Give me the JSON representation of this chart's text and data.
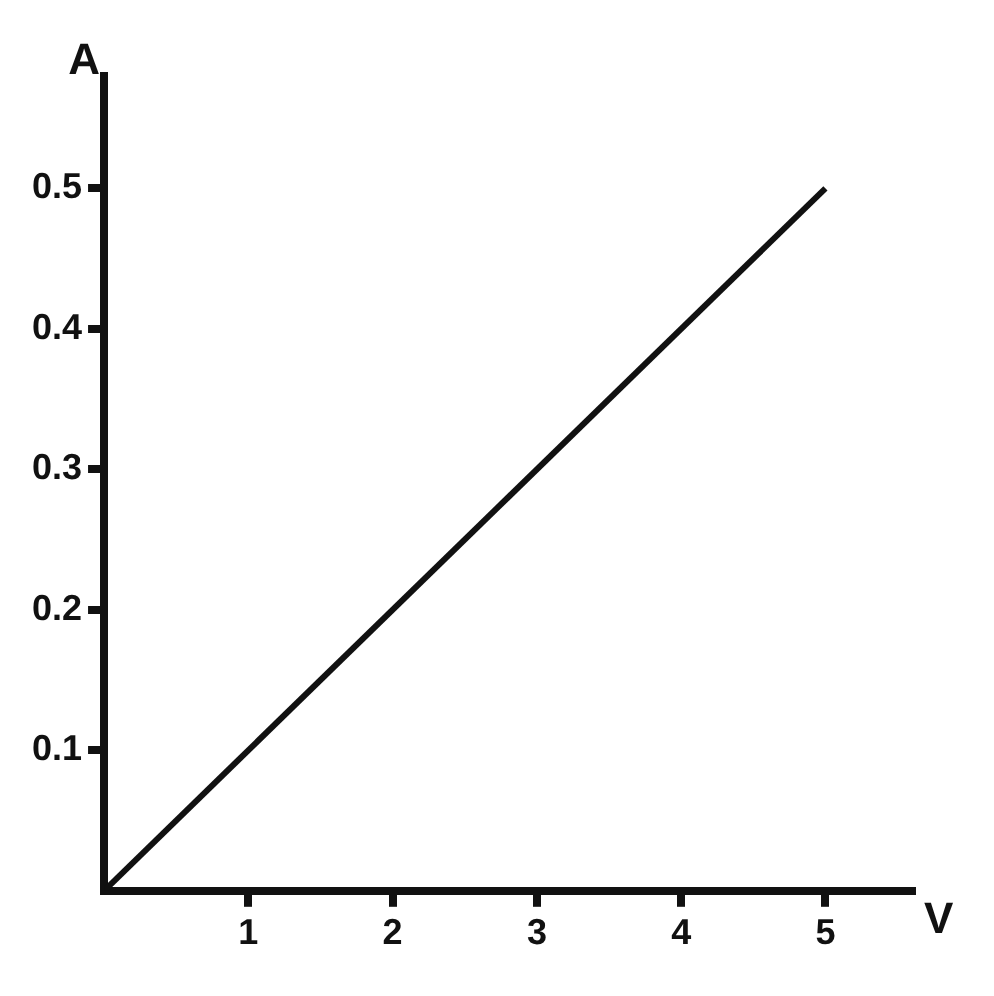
{
  "chart_data": {
    "type": "line",
    "xlabel": "V",
    "ylabel": "A",
    "series": [
      {
        "color": "#111111",
        "x": [
          0,
          5
        ],
        "values": [
          0,
          0.5
        ]
      }
    ],
    "xlim": [
      0,
      5.6
    ],
    "ylim": [
      0,
      0.58
    ],
    "xticks": [
      1,
      2,
      3,
      4,
      5
    ],
    "yticks": [
      0.1,
      0.2,
      0.3,
      0.4,
      0.5
    ],
    "grid": false,
    "legend": false,
    "marker": "none",
    "line_style": "solid"
  }
}
